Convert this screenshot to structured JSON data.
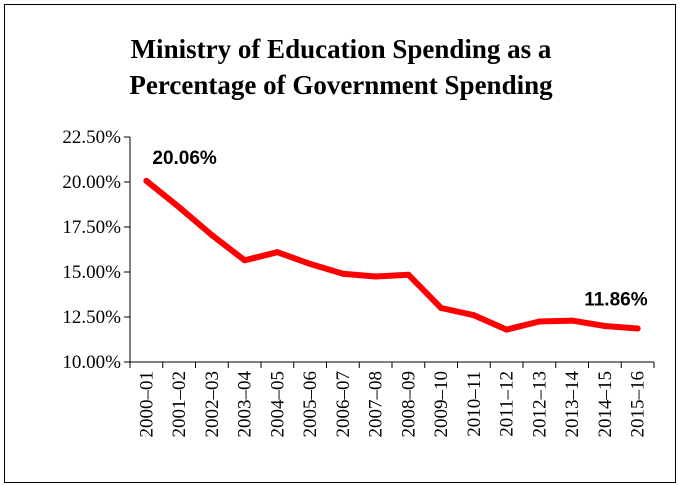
{
  "chart_data": {
    "type": "line",
    "title_line1": "Ministry of Education Spending as a",
    "title_line2": "Percentage of Government Spending",
    "xlabel": "",
    "ylabel": "",
    "categories": [
      "2000–01",
      "2001–02",
      "2002–03",
      "2003–04",
      "2004–05",
      "2005–06",
      "2006–07",
      "2007–08",
      "2008–09",
      "2009–10",
      "2010–11",
      "2011–12",
      "2012–13",
      "2013–14",
      "2014–15",
      "2015–16"
    ],
    "series": [
      {
        "values": [
          20.06,
          18.6,
          17.05,
          15.65,
          16.1,
          15.45,
          14.9,
          14.75,
          14.85,
          13.0,
          12.6,
          11.8,
          12.25,
          12.3,
          12.0,
          11.86
        ]
      }
    ],
    "ylim": [
      10,
      22.5
    ],
    "yticks": [
      10,
      12.5,
      15,
      17.5,
      20,
      22.5
    ],
    "ytick_labels": [
      "10.00%",
      "12.50%",
      "15.00%",
      "17.50%",
      "20.00%",
      "22.50%"
    ],
    "data_labels": [
      {
        "index": 0,
        "text": "20.06%"
      },
      {
        "index": 15,
        "text": "11.86%"
      }
    ],
    "line_color": "#ff0000",
    "legend": "none",
    "grid": false
  }
}
